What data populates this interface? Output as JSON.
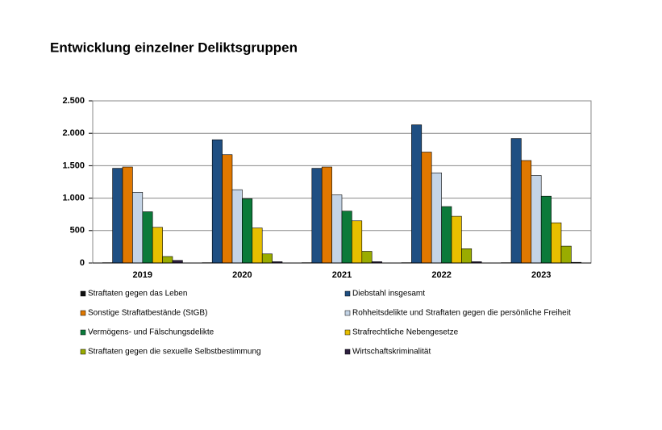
{
  "chart_data": {
    "type": "bar",
    "title": "Entwicklung einzelner Deliktsgruppen",
    "categories": [
      "2019",
      "2020",
      "2021",
      "2022",
      "2023"
    ],
    "series": [
      {
        "name": "Straftaten gegen das Leben",
        "color": "#111111",
        "values": [
          5,
          5,
          5,
          5,
          5
        ]
      },
      {
        "name": "Diebstahl insgesamt",
        "color": "#1f4f82",
        "values": [
          1460,
          1900,
          1460,
          2130,
          1920
        ]
      },
      {
        "name": "Sonstige Straftatbestände (StGB)",
        "color": "#e07800",
        "values": [
          1480,
          1670,
          1480,
          1710,
          1580
        ]
      },
      {
        "name": "Rohheitsdelikte und Straftaten gegen die persönliche Freiheit",
        "color": "#c4d4e6",
        "values": [
          1090,
          1130,
          1050,
          1390,
          1350
        ]
      },
      {
        "name": "Vermögens- und Fälschungsdelikte",
        "color": "#0b7a3a",
        "values": [
          790,
          990,
          800,
          870,
          1030
        ]
      },
      {
        "name": "Strafrechtliche Nebengesetze",
        "color": "#e8bf00",
        "values": [
          550,
          540,
          650,
          720,
          620
        ]
      },
      {
        "name": "Straftaten gegen die sexuelle Selbstbestimmung",
        "color": "#9aac00",
        "values": [
          100,
          140,
          180,
          220,
          260
        ]
      },
      {
        "name": "Wirtschaftskriminalität",
        "color": "#2e2040",
        "values": [
          40,
          20,
          20,
          20,
          10
        ]
      }
    ],
    "ylim": [
      0,
      2500
    ],
    "yticks": [
      0,
      {
        "value": 500,
        "label": "500"
      },
      {
        "value": 1000,
        "label": "1.000"
      },
      {
        "value": 1500,
        "label": "1.500"
      },
      {
        "value": 2000,
        "label": "2.000"
      },
      {
        "value": 2500,
        "label": "2.500"
      }
    ],
    "grid": true
  }
}
